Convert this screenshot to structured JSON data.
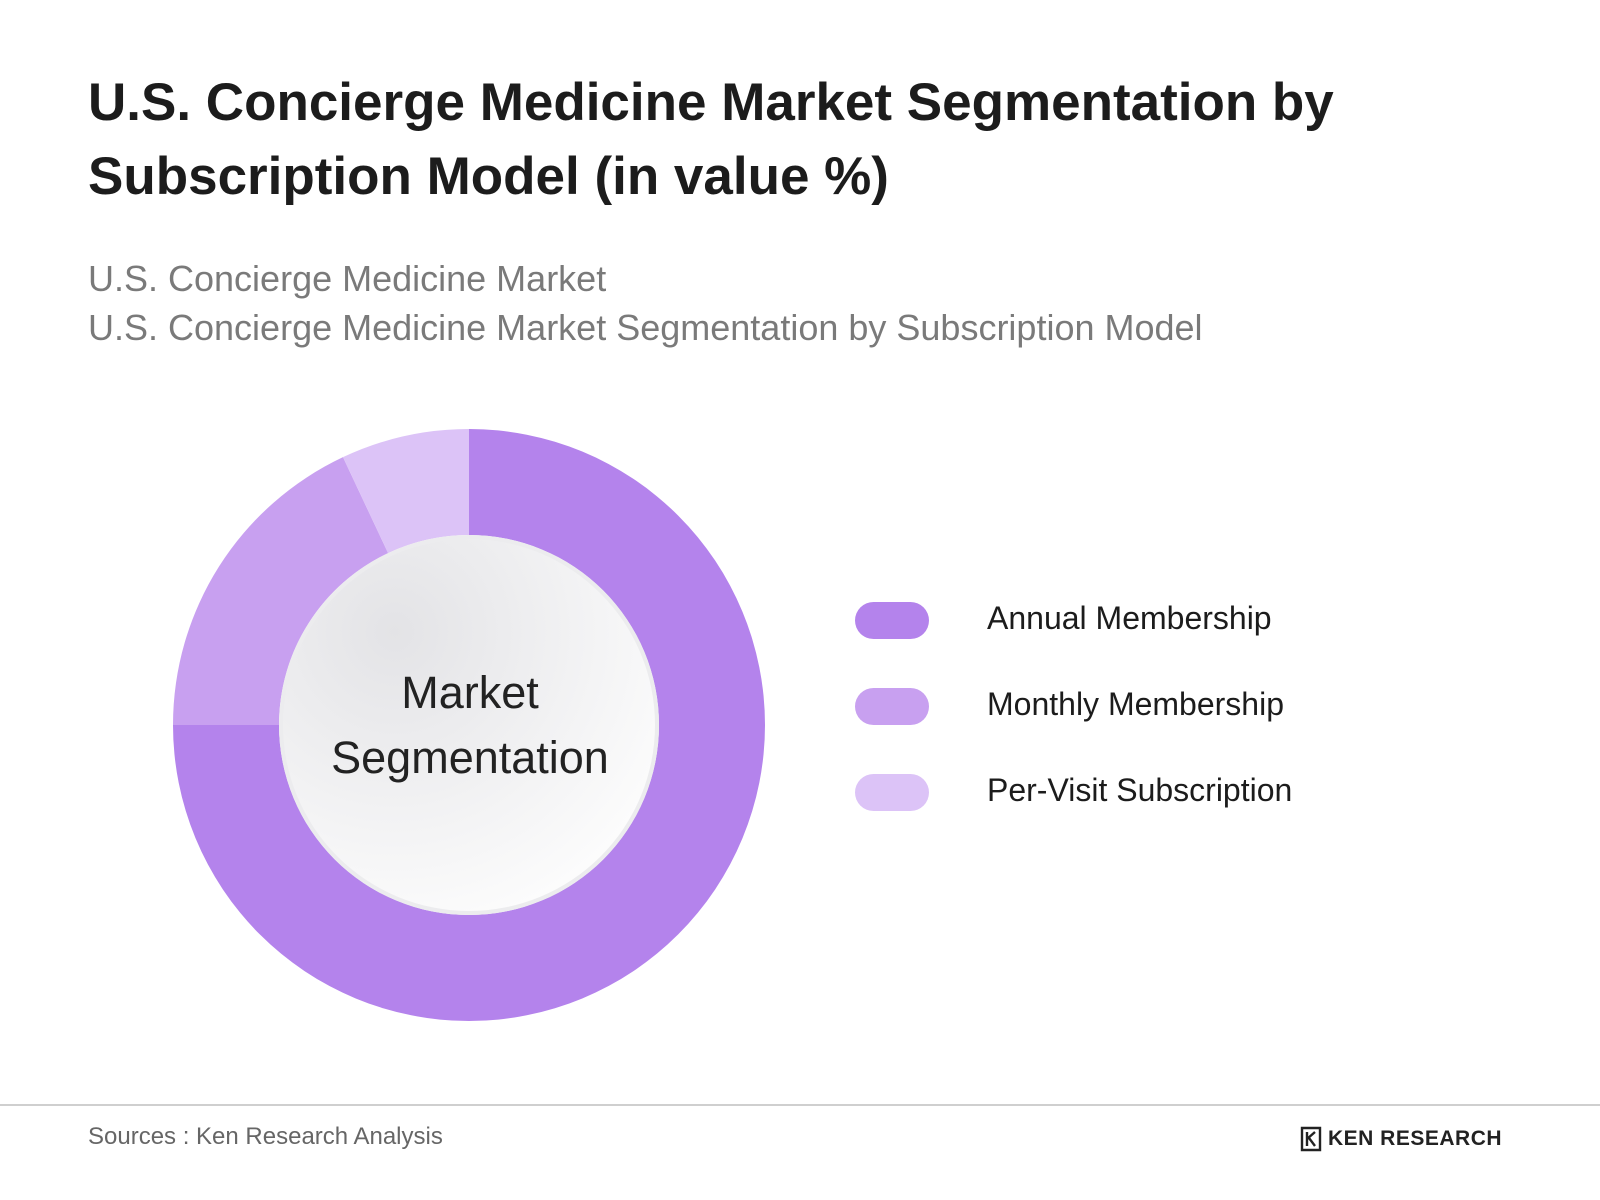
{
  "header": {
    "title": "U.S. Concierge Medicine Market Segmentation by Subscription Model (in value %)",
    "subtitle_line1": "U.S. Concierge Medicine Market",
    "subtitle_line2": "U.S. Concierge Medicine Market Segmentation by Subscription Model"
  },
  "center_label": {
    "line1": "Market",
    "line2": "Segmentation"
  },
  "chart_data": {
    "type": "pie",
    "variant": "donut",
    "categories": [
      "Annual Membership",
      "Monthly Membership",
      "Per-Visit Subscription"
    ],
    "values": [
      75,
      18,
      7
    ],
    "unit": "%",
    "colors": [
      "#b483ec",
      "#c8a0f0",
      "#dcc3f7"
    ],
    "legend_position": "right"
  },
  "footer": {
    "source": "Sources : Ken Research Analysis",
    "brand": "KEN RESEARCH",
    "brand_icon": "ken-research-logo-icon"
  }
}
